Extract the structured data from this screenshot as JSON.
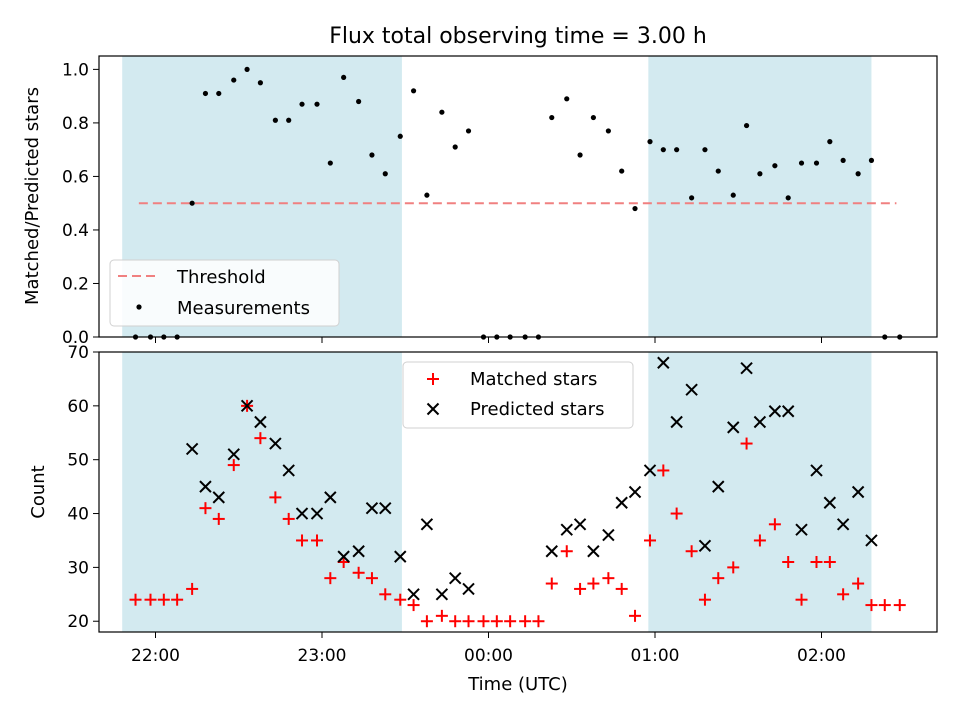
{
  "chart_data": {
    "title": "Flux total observing time = 3.00 h",
    "x_ticks": [
      {
        "hours": 22,
        "label": "22:00"
      },
      {
        "hours": 23,
        "label": "23:00"
      },
      {
        "hours": 24,
        "label": "00:00"
      },
      {
        "hours": 25,
        "label": "01:00"
      },
      {
        "hours": 26,
        "label": "02:00"
      }
    ],
    "xlabel": "Time (UTC)",
    "shaded_spans": [
      [
        21.8,
        23.48
      ],
      [
        24.96,
        26.3
      ]
    ],
    "shade_color": "#d3eaf0",
    "top": {
      "type": "scatter",
      "ylabel": "Matched/Predicted stars",
      "ylim": [
        0,
        1.05
      ],
      "y_ticks": [
        "0.0",
        "0.2",
        "0.4",
        "0.6",
        "0.8",
        "1.0"
      ],
      "threshold": {
        "name": "Threshold",
        "value": 0.5,
        "x_range": [
          21.9,
          26.45
        ],
        "color": "#f08080"
      },
      "measurements_name": "Measurements",
      "points": [
        [
          21.88,
          0.0
        ],
        [
          21.97,
          0.0
        ],
        [
          22.05,
          0.0
        ],
        [
          22.13,
          0.0
        ],
        [
          22.22,
          0.5
        ],
        [
          22.3,
          0.91
        ],
        [
          22.38,
          0.91
        ],
        [
          22.47,
          0.96
        ],
        [
          22.55,
          1.0
        ],
        [
          22.63,
          0.95
        ],
        [
          22.72,
          0.81
        ],
        [
          22.8,
          0.81
        ],
        [
          22.88,
          0.87
        ],
        [
          22.97,
          0.87
        ],
        [
          23.05,
          0.65
        ],
        [
          23.13,
          0.97
        ],
        [
          23.22,
          0.88
        ],
        [
          23.3,
          0.68
        ],
        [
          23.38,
          0.61
        ],
        [
          23.47,
          0.75
        ],
        [
          23.55,
          0.92
        ],
        [
          23.63,
          0.53
        ],
        [
          23.72,
          0.84
        ],
        [
          23.8,
          0.71
        ],
        [
          23.88,
          0.77
        ],
        [
          23.97,
          0.0
        ],
        [
          24.05,
          0.0
        ],
        [
          24.13,
          0.0
        ],
        [
          24.22,
          0.0
        ],
        [
          24.3,
          0.0
        ],
        [
          24.38,
          0.82
        ],
        [
          24.47,
          0.89
        ],
        [
          24.55,
          0.68
        ],
        [
          24.63,
          0.82
        ],
        [
          24.72,
          0.77
        ],
        [
          24.8,
          0.62
        ],
        [
          24.88,
          0.48
        ],
        [
          24.97,
          0.73
        ],
        [
          25.05,
          0.7
        ],
        [
          25.13,
          0.7
        ],
        [
          25.22,
          0.52
        ],
        [
          25.3,
          0.7
        ],
        [
          25.38,
          0.62
        ],
        [
          25.47,
          0.53
        ],
        [
          25.55,
          0.79
        ],
        [
          25.63,
          0.61
        ],
        [
          25.72,
          0.64
        ],
        [
          25.8,
          0.52
        ],
        [
          25.88,
          0.65
        ],
        [
          25.97,
          0.65
        ],
        [
          26.05,
          0.73
        ],
        [
          26.13,
          0.66
        ],
        [
          26.22,
          0.61
        ],
        [
          26.3,
          0.66
        ],
        [
          26.38,
          0.0
        ],
        [
          26.47,
          0.0
        ]
      ]
    },
    "bottom": {
      "type": "scatter",
      "ylabel": "Count",
      "ylim": [
        18,
        70
      ],
      "y_ticks": [
        20,
        30,
        40,
        50,
        60,
        70
      ],
      "series": [
        {
          "name": "Matched stars",
          "marker": "plus",
          "color": "#ff0000",
          "points": [
            [
              21.88,
              24
            ],
            [
              21.97,
              24
            ],
            [
              22.05,
              24
            ],
            [
              22.13,
              24
            ],
            [
              22.22,
              26
            ],
            [
              22.3,
              41
            ],
            [
              22.38,
              39
            ],
            [
              22.47,
              49
            ],
            [
              22.55,
              60
            ],
            [
              22.63,
              54
            ],
            [
              22.72,
              43
            ],
            [
              22.8,
              39
            ],
            [
              22.88,
              35
            ],
            [
              22.97,
              35
            ],
            [
              23.05,
              28
            ],
            [
              23.13,
              31
            ],
            [
              23.22,
              29
            ],
            [
              23.3,
              28
            ],
            [
              23.38,
              25
            ],
            [
              23.47,
              24
            ],
            [
              23.55,
              23
            ],
            [
              23.63,
              20
            ],
            [
              23.72,
              21
            ],
            [
              23.8,
              20
            ],
            [
              23.88,
              20
            ],
            [
              23.97,
              20
            ],
            [
              24.05,
              20
            ],
            [
              24.13,
              20
            ],
            [
              24.22,
              20
            ],
            [
              24.3,
              20
            ],
            [
              24.38,
              27
            ],
            [
              24.47,
              33
            ],
            [
              24.55,
              26
            ],
            [
              24.63,
              27
            ],
            [
              24.72,
              28
            ],
            [
              24.8,
              26
            ],
            [
              24.88,
              21
            ],
            [
              24.97,
              35
            ],
            [
              25.05,
              48
            ],
            [
              25.13,
              40
            ],
            [
              25.22,
              33
            ],
            [
              25.3,
              24
            ],
            [
              25.38,
              28
            ],
            [
              25.47,
              30
            ],
            [
              25.55,
              53
            ],
            [
              25.63,
              35
            ],
            [
              25.72,
              38
            ],
            [
              25.8,
              31
            ],
            [
              25.88,
              24
            ],
            [
              25.97,
              31
            ],
            [
              26.05,
              31
            ],
            [
              26.13,
              25
            ],
            [
              26.22,
              27
            ],
            [
              26.3,
              23
            ],
            [
              26.38,
              23
            ],
            [
              26.47,
              23
            ]
          ]
        },
        {
          "name": "Predicted stars",
          "marker": "x",
          "color": "#000000",
          "points": [
            [
              22.22,
              52
            ],
            [
              22.3,
              45
            ],
            [
              22.38,
              43
            ],
            [
              22.47,
              51
            ],
            [
              22.55,
              60
            ],
            [
              22.63,
              57
            ],
            [
              22.72,
              53
            ],
            [
              22.8,
              48
            ],
            [
              22.88,
              40
            ],
            [
              22.97,
              40
            ],
            [
              23.05,
              43
            ],
            [
              23.13,
              32
            ],
            [
              23.22,
              33
            ],
            [
              23.3,
              41
            ],
            [
              23.38,
              41
            ],
            [
              23.47,
              32
            ],
            [
              23.55,
              25
            ],
            [
              23.63,
              38
            ],
            [
              23.72,
              25
            ],
            [
              23.8,
              28
            ],
            [
              23.88,
              26
            ],
            [
              24.38,
              33
            ],
            [
              24.47,
              37
            ],
            [
              24.55,
              38
            ],
            [
              24.63,
              33
            ],
            [
              24.72,
              36
            ],
            [
              24.8,
              42
            ],
            [
              24.88,
              44
            ],
            [
              24.97,
              48
            ],
            [
              25.05,
              68
            ],
            [
              25.13,
              57
            ],
            [
              25.22,
              63
            ],
            [
              25.3,
              34
            ],
            [
              25.38,
              45
            ],
            [
              25.47,
              56
            ],
            [
              25.55,
              67
            ],
            [
              25.63,
              57
            ],
            [
              25.72,
              59
            ],
            [
              25.8,
              59
            ],
            [
              25.88,
              37
            ],
            [
              25.97,
              48
            ],
            [
              26.05,
              42
            ],
            [
              26.13,
              38
            ],
            [
              26.22,
              44
            ],
            [
              26.3,
              35
            ]
          ]
        }
      ]
    }
  }
}
